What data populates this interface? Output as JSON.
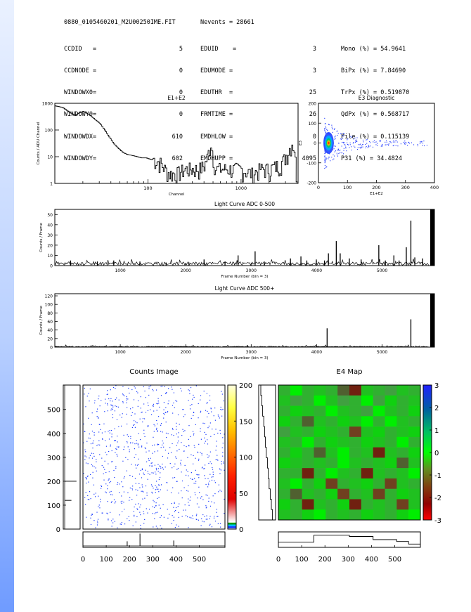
{
  "header": {
    "filename": "0880_0105460201_M2U00250IME.FIT",
    "nevents_label": "Nevents = 28661",
    "col1_labels": [
      "CCDID   =",
      "CCDNODE =",
      "WINDOWX0=",
      "WINDOWY0=",
      "WINDOWDX=",
      "WINDOWDY="
    ],
    "col1_values": [
      "5",
      "0",
      "0",
      "0",
      "610",
      "602"
    ],
    "col2_labels": [
      "EDUID    =",
      "EDUMODE =",
      "EDUTHR  =",
      "FRMTIME =",
      "EMDHLOW =",
      "EMDHUPP ="
    ],
    "col2_values": [
      "3",
      "3",
      "25",
      "26",
      "0",
      "4095"
    ],
    "col3": [
      "Mono (%) = 54.9641",
      "BiPx (%) = 7.84690",
      "TrPx (%) = 0.519870",
      "QdPx (%) = 0.568717",
      "Pile (%) = 0.115139",
      "P31 (%) = 34.4824"
    ]
  },
  "chart_data": [
    {
      "id": "e1e2",
      "type": "line",
      "title": "E1+E2",
      "xlabel": "Channel",
      "ylabel": "Counts / ADU Channel",
      "xscale": "log",
      "yscale": "log",
      "xlim": [
        10,
        4096
      ],
      "ylim": [
        1,
        1000
      ],
      "xticks": [
        "100",
        "1000"
      ],
      "yticks": [
        "1",
        "10",
        "100",
        "1000"
      ],
      "x": [
        10,
        12,
        14,
        16,
        18,
        20,
        23,
        26,
        30,
        34,
        38,
        43,
        48,
        54,
        60,
        68,
        76,
        85,
        95,
        105,
        115,
        125,
        135,
        150,
        170,
        200,
        250,
        300,
        350,
        400,
        430,
        470,
        500,
        530,
        600,
        700,
        800,
        1000,
        1300,
        1600,
        2000,
        2400,
        2800,
        3200,
        3500,
        3700,
        3900,
        4000
      ],
      "y": [
        800,
        700,
        480,
        360,
        430,
        500,
        380,
        270,
        180,
        100,
        55,
        30,
        20,
        14,
        12,
        11,
        10,
        9,
        9,
        8,
        7,
        6,
        5,
        3,
        2,
        2,
        3,
        3,
        3,
        4,
        8,
        30,
        8,
        3,
        3,
        3,
        3,
        3,
        2,
        3,
        3,
        4,
        6,
        14,
        30,
        18,
        2,
        1
      ]
    },
    {
      "id": "e3diag",
      "type": "scatter",
      "title": "E3 Diagnostic",
      "xlabel": "E1+E2",
      "ylabel": "E3",
      "xlim": [
        0,
        400
      ],
      "ylim": [
        -200,
        200
      ],
      "xticks": [
        "0",
        "100",
        "200",
        "300",
        "400"
      ],
      "yticks": [
        "-200",
        "-100",
        "0",
        "100",
        "200"
      ],
      "density_center": [
        35,
        0
      ],
      "density_colors": [
        "#ff2a00",
        "#ffb000",
        "#00d060",
        "#00b0ff",
        "#2040ff"
      ]
    },
    {
      "id": "lc1",
      "type": "bar",
      "title": "Light Curve ADC 0-500",
      "xlabel": "Frame Number (bin = 3)",
      "ylabel": "Counts / Frame",
      "xlim": [
        0,
        5800
      ],
      "ylim": [
        0,
        55
      ],
      "xticks": [
        "1000",
        "2000",
        "3000",
        "4000",
        "5000"
      ],
      "yticks": [
        "0",
        "10",
        "20",
        "30",
        "40",
        "50"
      ],
      "baseline": 2,
      "spikes": [
        [
          240,
          5
        ],
        [
          650,
          4
        ],
        [
          900,
          5
        ],
        [
          1300,
          4
        ],
        [
          1700,
          3
        ],
        [
          2050,
          3
        ],
        [
          2280,
          6
        ],
        [
          2600,
          4
        ],
        [
          2800,
          10
        ],
        [
          3060,
          14
        ],
        [
          3200,
          4
        ],
        [
          3600,
          7
        ],
        [
          3760,
          9
        ],
        [
          3850,
          5
        ],
        [
          4120,
          5
        ],
        [
          4180,
          12
        ],
        [
          4300,
          24
        ],
        [
          4360,
          12
        ],
        [
          4500,
          7
        ],
        [
          4680,
          6
        ],
        [
          4950,
          20
        ],
        [
          5050,
          5
        ],
        [
          5180,
          10
        ],
        [
          5260,
          5
        ],
        [
          5370,
          18
        ],
        [
          5440,
          44
        ],
        [
          5500,
          8
        ],
        [
          5620,
          7
        ]
      ]
    },
    {
      "id": "lc2",
      "type": "bar",
      "title": "Light Curve ADC 500+",
      "xlabel": "Frame Number (bin = 3)",
      "ylabel": "Counts / Frame",
      "xlim": [
        0,
        5800
      ],
      "ylim": [
        0,
        125
      ],
      "xticks": [
        "1000",
        "2000",
        "3000",
        "4000",
        "5000"
      ],
      "yticks": [
        "0",
        "20",
        "40",
        "60",
        "80",
        "100",
        "120"
      ],
      "baseline": 1,
      "spikes": [
        [
          2940,
          5
        ],
        [
          4160,
          44
        ],
        [
          5440,
          65
        ]
      ]
    },
    {
      "id": "countsimg",
      "type": "heatmap",
      "title": "Counts Image",
      "xlim": [
        0,
        610
      ],
      "ylim": [
        0,
        602
      ],
      "xticks": [
        "0",
        "100",
        "200",
        "300",
        "400",
        "500"
      ],
      "yticks": [
        "0",
        "100",
        "200",
        "300",
        "400",
        "500"
      ],
      "colorbar_ticks": [
        "0",
        "50",
        "100",
        "150",
        "200"
      ],
      "colorbar_range": [
        0,
        200
      ],
      "side_profile_spikes": [
        [
          120,
          40
        ],
        [
          200,
          70
        ]
      ],
      "bottom_profile_spikes": [
        [
          245,
          80
        ],
        [
          390,
          35
        ],
        [
          190,
          30
        ]
      ]
    },
    {
      "id": "e4map",
      "type": "heatmap",
      "title": "E4 Map",
      "xlim": [
        0,
        610
      ],
      "ylim": [
        0,
        602
      ],
      "xticks": [
        "0",
        "100",
        "200",
        "300",
        "400",
        "500"
      ],
      "yticks": [],
      "colorbar_ticks": [
        "-3",
        "-2",
        "-1",
        "0",
        "1",
        "2",
        "3"
      ],
      "colorbar_range": [
        -3,
        3
      ],
      "grid": [
        [
          0.2,
          0.5,
          0.2,
          0.3,
          0.2,
          -0.2,
          -0.8,
          0.3,
          0.2,
          0.1,
          0.3,
          0.2
        ],
        [
          0.3,
          0.1,
          0.2,
          0.5,
          0.3,
          0.1,
          0.2,
          0.6,
          0.1,
          0.4,
          0.2,
          0.3
        ],
        [
          0.2,
          0.4,
          0.3,
          0.2,
          0.6,
          0.3,
          0.2,
          0.1,
          0.5,
          0.3,
          0.2,
          0.4
        ],
        [
          0.4,
          0.2,
          -0.1,
          0.3,
          0.2,
          0.4,
          0.3,
          0.5,
          0.2,
          0.6,
          0.3,
          0.2
        ],
        [
          0.1,
          0.3,
          0.2,
          0.4,
          0.3,
          0.2,
          -0.5,
          0.3,
          0.4,
          0.2,
          0.3,
          0.4
        ],
        [
          0.3,
          0.2,
          0.5,
          0.2,
          0.4,
          0.3,
          0.2,
          0.4,
          0.3,
          0.2,
          0.5,
          0.2
        ],
        [
          0.2,
          0.4,
          0.2,
          -0.3,
          0.3,
          0.5,
          0.2,
          0.3,
          -0.9,
          0.3,
          0.2,
          0.4
        ],
        [
          0.4,
          0.3,
          0.2,
          0.3,
          0.2,
          0.6,
          0.3,
          0.2,
          0.3,
          0.4,
          -0.2,
          0.3
        ],
        [
          0.2,
          0.2,
          -0.8,
          0.2,
          0.5,
          0.3,
          0.2,
          -1.0,
          0.3,
          0.2,
          0.3,
          0.5
        ],
        [
          0.3,
          0.5,
          0.2,
          0.4,
          -0.6,
          0.2,
          0.3,
          0.4,
          0.2,
          -0.7,
          0.3,
          0.2
        ],
        [
          0.2,
          -0.4,
          0.3,
          0.2,
          0.4,
          -0.5,
          0.2,
          0.3,
          -0.6,
          0.2,
          0.4,
          0.3
        ],
        [
          0.4,
          0.2,
          -1.2,
          0.3,
          0.2,
          0.4,
          -0.8,
          0.2,
          0.3,
          0.2,
          -0.5,
          0.3
        ],
        [
          0.3,
          0.2,
          0.4,
          0.5,
          0.2,
          0.3,
          0.2,
          0.4,
          0.3,
          0.2,
          0.4,
          0.5
        ]
      ],
      "side_profile": [
        0.05,
        0.12,
        0.18,
        0.26,
        0.32,
        0.38,
        0.44,
        0.52,
        0.58,
        0.64,
        0.72,
        0.8,
        0.88
      ],
      "bottom_profile": [
        0.3,
        0.3,
        0.3,
        0.85,
        0.85,
        0.85,
        0.75,
        0.75,
        0.5,
        0.5,
        0.35,
        0.15
      ]
    }
  ]
}
